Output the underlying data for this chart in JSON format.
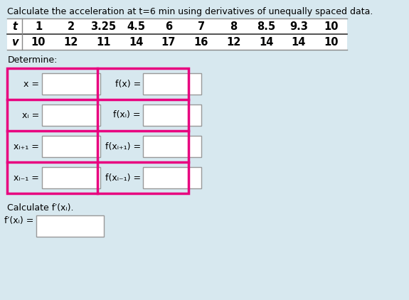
{
  "title": "Calculate the acceleration at t=6 min using derivatives of unequally spaced data.",
  "table_t_label": "t",
  "table_v_label": "v",
  "table_t_values": [
    "1",
    "2",
    "3.25",
    "4.5",
    "6",
    "7",
    "8",
    "8.5",
    "9.3",
    "10"
  ],
  "table_v_values": [
    "10",
    "12",
    "11",
    "14",
    "17",
    "16",
    "12",
    "14",
    "14",
    "10"
  ],
  "determine_label": "Determine:",
  "row_labels_left": [
    "x =",
    "xᵢ =",
    "xᵢ₊₁ =",
    "xᵢ₋₁ ="
  ],
  "row_labels_right": [
    "f(x) =",
    "f(xᵢ) =",
    "f(xᵢ₊₁) =",
    "f(xᵢ₋₁) ="
  ],
  "calc_label": "Calculate f′(xᵢ).",
  "calc_result_label": "f′(xᵢ) =",
  "bg_color": "#d7e8ef",
  "table_bg": "#ffffff",
  "grid_border_color": "#e8007f",
  "input_box_color": "#ffffff",
  "text_color": "#000000",
  "title_fontsize": 9.0,
  "label_fontsize": 9.0,
  "table_fontsize": 10.5
}
